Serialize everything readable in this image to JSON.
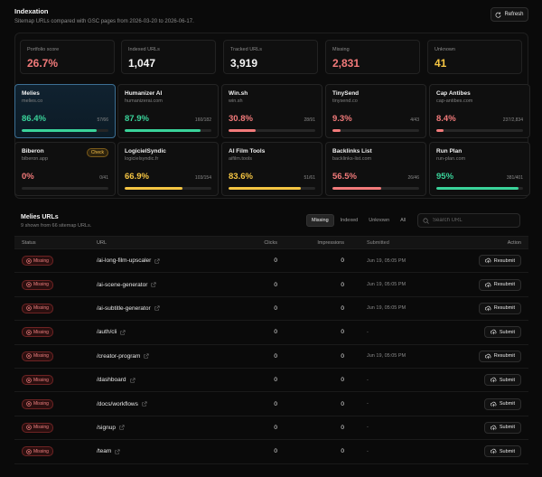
{
  "header": {
    "title": "Indexation",
    "subtitle": "Sitemap URLs compared with GSC pages from 2026-03-20 to 2026-06-17.",
    "refresh_label": "Refresh"
  },
  "stats": [
    {
      "label": "Portfolio score",
      "value": "26.7%",
      "color": "#f27a7a"
    },
    {
      "label": "Indexed URLs",
      "value": "1,047",
      "color": "#f5f5f5"
    },
    {
      "label": "Tracked URLs",
      "value": "3,919",
      "color": "#f5f5f5"
    },
    {
      "label": "Missing",
      "value": "2,831",
      "color": "#f27a7a"
    },
    {
      "label": "Unknown",
      "value": "41",
      "color": "#f5c542"
    }
  ],
  "sites": [
    {
      "name": "Melies",
      "domain": "melies.co",
      "pct": "86.4%",
      "ratio": "57/66",
      "fill": 0.864,
      "color": "#3ad39a"
    },
    {
      "name": "Humanizer AI",
      "domain": "humanizerai.com",
      "pct": "87.9%",
      "ratio": "160/182",
      "fill": 0.879,
      "color": "#3ad39a"
    },
    {
      "name": "Win.sh",
      "domain": "win.sh",
      "pct": "30.8%",
      "ratio": "28/91",
      "fill": 0.308,
      "color": "#f27a7a"
    },
    {
      "name": "TinySend",
      "domain": "tinysend.co",
      "pct": "9.3%",
      "ratio": "4/43",
      "fill": 0.093,
      "color": "#f27a7a"
    },
    {
      "name": "Cap Antibes",
      "domain": "cap-antibes.com",
      "pct": "8.4%",
      "ratio": "237/2,834",
      "fill": 0.084,
      "color": "#f27a7a"
    },
    {
      "name": "Biberon",
      "domain": "biberon.app",
      "pct": "0%",
      "ratio": "0/41",
      "fill": 0,
      "color": "#f27a7a",
      "badge": "Check"
    },
    {
      "name": "LogicielSyndic",
      "domain": "logicielsyndic.fr",
      "pct": "66.9%",
      "ratio": "103/154",
      "fill": 0.669,
      "color": "#f5c542"
    },
    {
      "name": "AI Film Tools",
      "domain": "aifilm.tools",
      "pct": "83.6%",
      "ratio": "51/61",
      "fill": 0.836,
      "color": "#f5c542"
    },
    {
      "name": "Backlinks List",
      "domain": "backlinks-list.com",
      "pct": "56.5%",
      "ratio": "26/46",
      "fill": 0.565,
      "color": "#f27a7a"
    },
    {
      "name": "Run Plan",
      "domain": "run-plan.com",
      "pct": "95%",
      "ratio": "381/401",
      "fill": 0.95,
      "color": "#3ad39a"
    }
  ],
  "urls_section": {
    "title": "Melies URLs",
    "subtitle": "9 shown from 66 sitemap URLs.",
    "filters": [
      "Missing",
      "Indexed",
      "Unknown",
      "All"
    ],
    "active_filter": "Missing",
    "search_placeholder": "Search URL"
  },
  "table": {
    "headers": {
      "status": "Status",
      "url": "URL",
      "clicks": "Clicks",
      "impressions": "Impressions",
      "submitted": "Submitted",
      "action": "Action"
    },
    "rows": [
      {
        "status": "Missing",
        "url": "/ai-long-film-upscaler",
        "clicks": "0",
        "impressions": "0",
        "submitted": "Jun 19, 05:05 PM",
        "action": "Resubmit"
      },
      {
        "status": "Missing",
        "url": "/ai-scene-generator",
        "clicks": "0",
        "impressions": "0",
        "submitted": "Jun 19, 05:05 PM",
        "action": "Resubmit"
      },
      {
        "status": "Missing",
        "url": "/ai-subtitle-generator",
        "clicks": "0",
        "impressions": "0",
        "submitted": "Jun 19, 05:05 PM",
        "action": "Resubmit"
      },
      {
        "status": "Missing",
        "url": "/auth/cli",
        "clicks": "0",
        "impressions": "0",
        "submitted": "-",
        "action": "Submit"
      },
      {
        "status": "Missing",
        "url": "/creator-program",
        "clicks": "0",
        "impressions": "0",
        "submitted": "Jun 19, 05:05 PM",
        "action": "Resubmit"
      },
      {
        "status": "Missing",
        "url": "/dashboard",
        "clicks": "0",
        "impressions": "0",
        "submitted": "-",
        "action": "Submit"
      },
      {
        "status": "Missing",
        "url": "/docs/workflows",
        "clicks": "0",
        "impressions": "0",
        "submitted": "-",
        "action": "Submit"
      },
      {
        "status": "Missing",
        "url": "/signup",
        "clicks": "0",
        "impressions": "0",
        "submitted": "-",
        "action": "Submit"
      },
      {
        "status": "Missing",
        "url": "/team",
        "clicks": "0",
        "impressions": "0",
        "submitted": "-",
        "action": "Submit"
      }
    ]
  },
  "icons": {
    "refresh": "refresh-icon",
    "search": "search-icon",
    "status": "x-circle-icon",
    "external": "external-link-icon",
    "action": "cloud-upload-icon"
  }
}
